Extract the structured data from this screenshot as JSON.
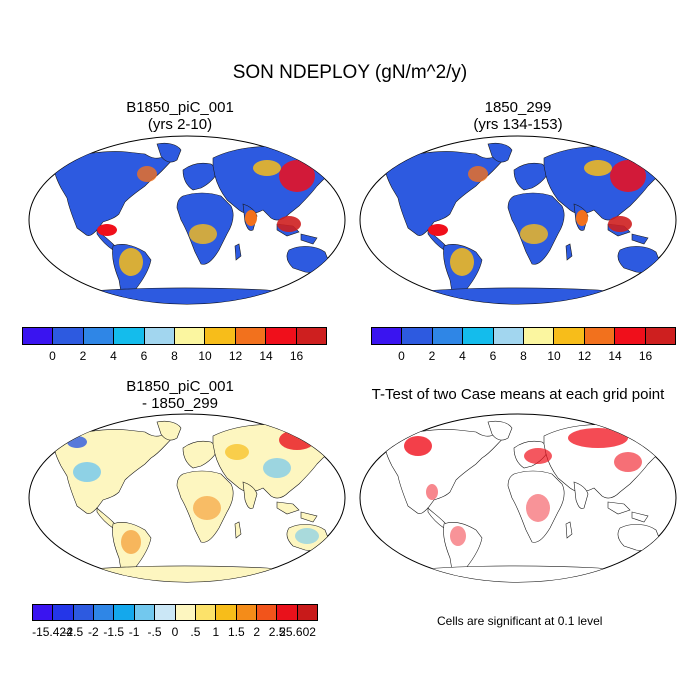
{
  "title": "SON NDEPLOY (gN/m^2/y)",
  "panels": [
    {
      "title_line1": "B1850_piC_001",
      "title_line2": "(yrs 2-10)"
    },
    {
      "title_line1": "1850_299",
      "title_line2": "(yrs 134-153)"
    },
    {
      "title_line1": "B1850_piC_001",
      "title_line2": "- 1850_299"
    },
    {
      "title_line1": "T-Test of two Case means at each grid point",
      "title_line2": ""
    }
  ],
  "colorbar_top": {
    "colors": [
      "#3a14f0",
      "#2d5ae0",
      "#2f86e6",
      "#14bcec",
      "#a2d6ef",
      "#fbf6a0",
      "#f7bd1a",
      "#f2711d",
      "#f00f1b",
      "#ce1f1f"
    ],
    "labels": [
      "0",
      "2",
      "4",
      "6",
      "8",
      "10",
      "12",
      "14",
      "16"
    ]
  },
  "colorbar_diff": {
    "colors": [
      "#3a14f0",
      "#2436e8",
      "#2d5ae0",
      "#2f86e6",
      "#14a8ec",
      "#72c8ee",
      "#cbe7f6",
      "#fdf6c0",
      "#fce26a",
      "#f7bd1a",
      "#f48c19",
      "#f2541b",
      "#e9111b",
      "#c81a1a"
    ],
    "labels": [
      "-15.424",
      "-2.5",
      "-2",
      "-1.5",
      "-1",
      "-.5",
      "0",
      ".5",
      "1",
      "1.5",
      "2",
      "2.5",
      "25.602"
    ]
  },
  "significance_note": "Cells are significant at 0.1 level"
}
